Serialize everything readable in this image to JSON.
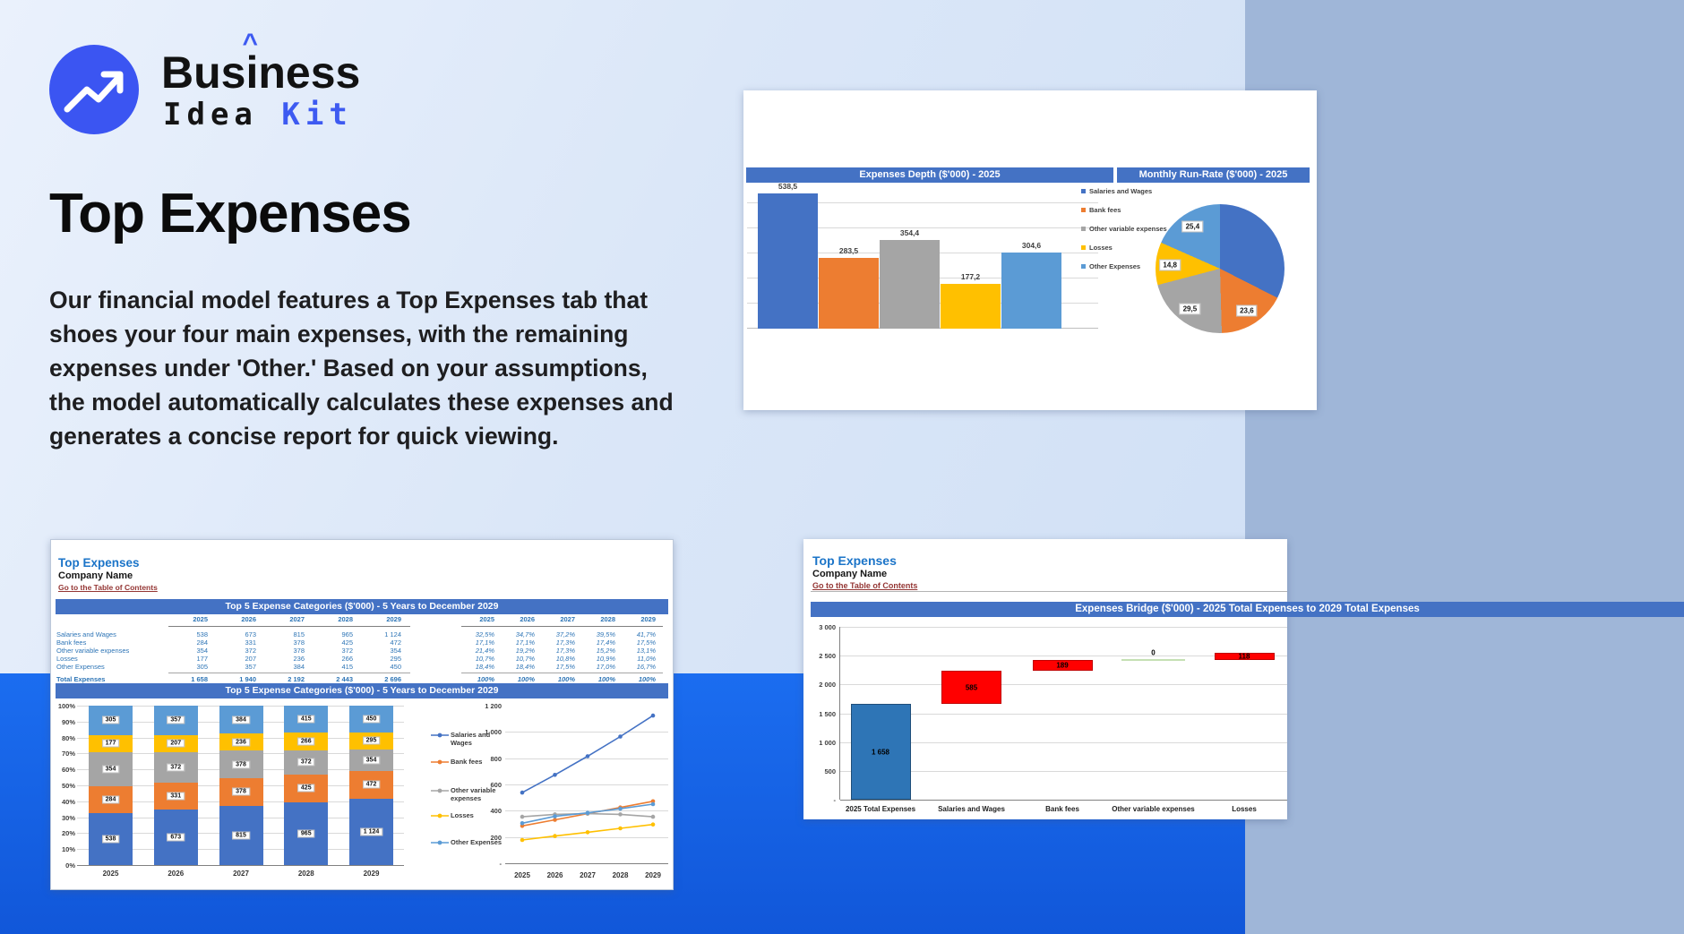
{
  "logo": {
    "prefix": "Bus",
    "i": "i",
    "caret": "^",
    "suffix": "ness",
    "line2_black": "Idea",
    "line2_blue": "Kit"
  },
  "hero": {
    "title": "Top Expenses",
    "description": "Our financial model features a Top Expenses tab that shoes your four main expenses, with the remaining expenses under 'Other.' Based on your assumptions, the model automatically calculates these expenses and generates a concise report for quick viewing."
  },
  "colors": {
    "palette": [
      "#4472C4",
      "#ED7D31",
      "#A5A5A5",
      "#FFC000",
      "#5B9BD5"
    ],
    "header_bar": "#4472C4",
    "band_blue": "#1b6df0",
    "logo_blue": "#3d5af1",
    "link_maroon": "#943634",
    "table_blue": "#2E75B6",
    "waterfall_total": "#2E75B6",
    "waterfall_up": "#FF0000",
    "waterfall_zero": "#C5E0B4"
  },
  "top5": {
    "sheet_title": "Top Expenses",
    "company": "Company Name",
    "toc_link": "Go to the Table of Contents",
    "section_title": "Top 5 Expense Categories ($'000) - 5 Years to December 2029",
    "years": [
      "2025",
      "2026",
      "2027",
      "2028",
      "2029"
    ],
    "rows": [
      {
        "label": "Salaries and Wages",
        "values": [
          "538",
          "673",
          "815",
          "965",
          "1 124"
        ],
        "pcts": [
          "32,5%",
          "34,7%",
          "37,2%",
          "39,5%",
          "41,7%"
        ]
      },
      {
        "label": "Bank fees",
        "values": [
          "284",
          "331",
          "378",
          "425",
          "472"
        ],
        "pcts": [
          "17,1%",
          "17,1%",
          "17,3%",
          "17,4%",
          "17,5%"
        ]
      },
      {
        "label": "Other variable expenses",
        "values": [
          "354",
          "372",
          "378",
          "372",
          "354"
        ],
        "pcts": [
          "21,4%",
          "19,2%",
          "17,3%",
          "15,2%",
          "13,1%"
        ]
      },
      {
        "label": "Losses",
        "values": [
          "177",
          "207",
          "236",
          "266",
          "295"
        ],
        "pcts": [
          "10,7%",
          "10,7%",
          "10,8%",
          "10,9%",
          "11,0%"
        ]
      },
      {
        "label": "Other Expenses",
        "values": [
          "305",
          "357",
          "384",
          "415",
          "450"
        ],
        "pcts": [
          "18,4%",
          "18,4%",
          "17,5%",
          "17,0%",
          "16,7%"
        ]
      }
    ],
    "total": {
      "label": "Total Expenses",
      "values": [
        "1 658",
        "1 940",
        "2 192",
        "2 443",
        "2 696"
      ],
      "pcts": [
        "100%",
        "100%",
        "100%",
        "100%",
        "100%"
      ]
    }
  },
  "bridge": {
    "sheet_title": "Top Expenses",
    "company": "Company Name",
    "toc_link": "Go to the Table of Contents"
  },
  "chart_data": [
    {
      "type": "bar",
      "title": "Expenses Depth ($'000) - 2025",
      "categories": [
        "Salaries and Wages",
        "Bank fees",
        "Other variable expenses",
        "Losses",
        "Other Expenses"
      ],
      "values": [
        538.5,
        283.5,
        354.4,
        177.2,
        304.6
      ],
      "labels": [
        "538,5",
        "283,5",
        "354,4",
        "177,2",
        "304,6"
      ],
      "ylim": [
        0,
        600
      ],
      "grid_step": 100,
      "legend_position": "right"
    },
    {
      "type": "pie",
      "title": "Monthly Run-Rate ($'000) - 2025",
      "categories": [
        "Salaries and Wages",
        "Bank fees",
        "Other variable expenses",
        "Losses",
        "Other Expenses"
      ],
      "values": [
        44.9,
        23.6,
        29.5,
        14.8,
        25.4
      ],
      "labels": [
        null,
        "23,6",
        "29,5",
        "14,8",
        "25,4"
      ]
    },
    {
      "type": "bar-stacked-100+line",
      "title": "Top 5 Expense Categories ($'000) - 5 Years to December 2029",
      "categories": [
        "2025",
        "2026",
        "2027",
        "2028",
        "2029"
      ],
      "series": [
        {
          "name": "Salaries and Wages",
          "values": [
            538,
            673,
            815,
            965,
            1124
          ],
          "labels": [
            "538",
            "673",
            "815",
            "965",
            "1 124"
          ]
        },
        {
          "name": "Bank fees",
          "values": [
            284,
            331,
            378,
            425,
            472
          ],
          "labels": [
            "284",
            "331",
            "378",
            "425",
            "472"
          ]
        },
        {
          "name": "Other variable expenses",
          "values": [
            354,
            372,
            378,
            372,
            354
          ],
          "labels": [
            "354",
            "372",
            "378",
            "372",
            "354"
          ]
        },
        {
          "name": "Losses",
          "values": [
            177,
            207,
            236,
            266,
            295
          ],
          "labels": [
            "177",
            "207",
            "236",
            "266",
            "295"
          ]
        },
        {
          "name": "Other Expenses",
          "values": [
            305,
            357,
            384,
            415,
            450
          ],
          "labels": [
            "305",
            "357",
            "384",
            "415",
            "450"
          ]
        }
      ],
      "stacked_yticks": [
        "100%",
        "90%",
        "80%",
        "70%",
        "60%",
        "50%",
        "40%",
        "30%",
        "20%",
        "10%",
        "0%"
      ],
      "line_ylim": [
        0,
        1200
      ],
      "line_yticks": [
        "1 200",
        "1 000",
        "800",
        "600",
        "400",
        "200",
        "-"
      ]
    },
    {
      "type": "waterfall",
      "title": "Expenses Bridge ($'000) - 2025 Total Expenses to 2029 Total Expenses",
      "categories": [
        "2025 Total Expenses",
        "Salaries and Wages",
        "Bank fees",
        "Other variable expenses",
        "Losses"
      ],
      "values": [
        1658,
        585,
        189,
        0,
        118
      ],
      "kinds": [
        "total",
        "up",
        "up",
        "zero",
        "up"
      ],
      "labels": [
        "1 658",
        "585",
        "189",
        "0",
        "118"
      ],
      "ylim": [
        0,
        3000
      ],
      "yticks": [
        "3 000",
        "2 500",
        "2 000",
        "1 500",
        "1 000",
        "500",
        "-"
      ]
    }
  ]
}
